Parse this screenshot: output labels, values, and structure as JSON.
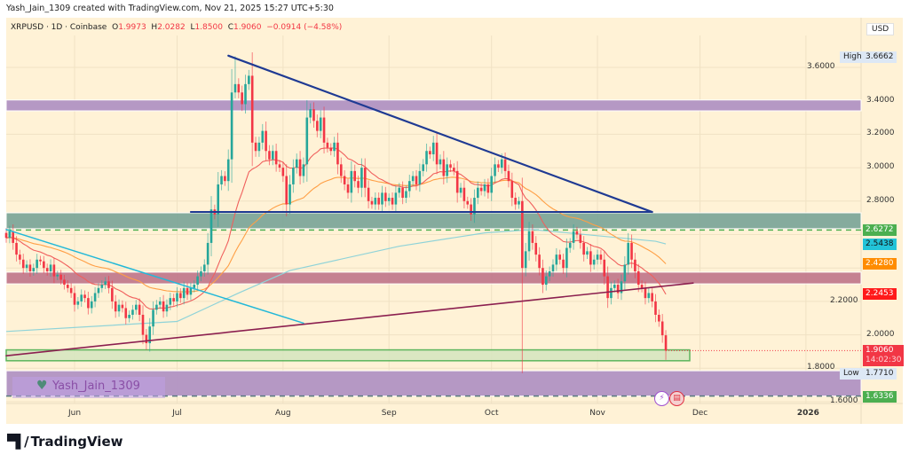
{
  "header": {
    "attribution": "Yash_Jain_1309 created with TradingView.com, Nov 21, 2025 15:27 UTC+5:30"
  },
  "legend": {
    "symbol": "XRPUSD · 1D · Coinbase",
    "o_label": "O",
    "o": "1.9973",
    "h_label": "H",
    "h": "2.0282",
    "l_label": "L",
    "l": "1.8500",
    "c_label": "C",
    "c": "1.9060",
    "change": "−0.0914 (−4.58%)"
  },
  "currency": "USD",
  "watermark": "Yash_Jain_1309",
  "brand": "TradingView",
  "colors": {
    "background": "#fff2d6",
    "up": "#26a69a",
    "down": "#f23645",
    "ema_fast": "#f0605d",
    "ema_slow": "#ff9f45",
    "ma_long": "#8fd3d8",
    "trendline": "#1f3a93",
    "cyan_line": "#22b8d8",
    "maroon_line": "#8b1f4f"
  },
  "chart_data": {
    "type": "candlestick",
    "start_date": "2025-05-12",
    "interval": "1D",
    "ylim": [
      1.56,
      3.78
    ],
    "y_ticks": [
      "3.6000",
      "3.4000",
      "3.2000",
      "3.0000",
      "2.8000",
      "2.2000",
      "2.0000",
      "1.8000",
      "1.6000"
    ],
    "x_ticks": [
      {
        "label": "Jun",
        "date": "2025-06-01"
      },
      {
        "label": "Jul",
        "date": "2025-07-01"
      },
      {
        "label": "Aug",
        "date": "2025-08-01"
      },
      {
        "label": "Sep",
        "date": "2025-09-01"
      },
      {
        "label": "Oct",
        "date": "2025-10-01"
      },
      {
        "label": "Nov",
        "date": "2025-11-01"
      },
      {
        "label": "Dec",
        "date": "2025-12-01"
      },
      {
        "label": "2026",
        "date": "2026-01-01"
      }
    ],
    "closes": [
      2.58,
      2.62,
      2.55,
      2.48,
      2.45,
      2.4,
      2.42,
      2.38,
      2.4,
      2.45,
      2.44,
      2.4,
      2.38,
      2.42,
      2.35,
      2.36,
      2.33,
      2.3,
      2.28,
      2.25,
      2.18,
      2.2,
      2.24,
      2.22,
      2.16,
      2.2,
      2.25,
      2.28,
      2.3,
      2.32,
      2.28,
      2.2,
      2.14,
      2.18,
      2.16,
      2.1,
      2.12,
      2.15,
      2.18,
      2.12,
      2.0,
      1.95,
      2.05,
      2.15,
      2.18,
      2.2,
      2.14,
      2.18,
      2.22,
      2.2,
      2.25,
      2.22,
      2.28,
      2.24,
      2.28,
      2.3,
      2.35,
      2.38,
      2.42,
      2.55,
      2.75,
      2.72,
      2.9,
      2.95,
      2.92,
      3.05,
      3.45,
      3.5,
      3.45,
      3.38,
      3.5,
      3.55,
      3.15,
      3.1,
      3.15,
      3.22,
      3.1,
      3.05,
      3.1,
      3.02,
      3.0,
      2.95,
      2.78,
      2.9,
      3.0,
      3.05,
      2.95,
      3.02,
      3.3,
      3.35,
      3.28,
      3.22,
      3.3,
      3.15,
      3.12,
      3.1,
      3.15,
      3.02,
      2.95,
      2.9,
      2.85,
      2.98,
      2.92,
      2.88,
      3.0,
      2.88,
      2.8,
      2.78,
      2.82,
      2.78,
      2.85,
      2.8,
      2.82,
      2.78,
      2.85,
      2.88,
      2.82,
      2.86,
      2.92,
      2.95,
      2.9,
      2.98,
      3.02,
      3.1,
      3.08,
      3.15,
      3.02,
      3.05,
      2.95,
      3.02,
      3.0,
      2.98,
      2.85,
      2.88,
      2.8,
      2.78,
      2.72,
      2.82,
      2.88,
      2.86,
      2.9,
      2.85,
      2.95,
      3.02,
      3.0,
      3.05,
      2.98,
      2.92,
      2.82,
      2.78,
      2.8,
      2.4,
      2.5,
      2.62,
      2.55,
      2.48,
      2.4,
      2.3,
      2.35,
      2.38,
      2.42,
      2.48,
      2.45,
      2.4,
      2.52,
      2.55,
      2.62,
      2.6,
      2.55,
      2.48,
      2.5,
      2.42,
      2.45,
      2.48,
      2.45,
      2.35,
      2.22,
      2.28,
      2.3,
      2.25,
      2.32,
      2.42,
      2.55,
      2.45,
      2.38,
      2.3,
      2.28,
      2.22,
      2.25,
      2.2,
      2.12,
      2.08,
      1.9973,
      1.906
    ],
    "overrides": [
      {
        "date": "2025-07-18",
        "high": 3.6662
      },
      {
        "date": "2025-10-10",
        "open": 2.8,
        "low": 1.771
      },
      {
        "date": "2025-06-22",
        "low": 1.91
      },
      {
        "date": "2025-11-21",
        "open": 1.9973,
        "high": 2.0282,
        "low": 1.85,
        "close": 1.906
      }
    ],
    "ma_long": [
      [
        "2025-05-12",
        2.02
      ],
      [
        "2025-07-01",
        2.08
      ],
      [
        "2025-07-19",
        2.25
      ],
      [
        "2025-08-03",
        2.385
      ],
      [
        "2025-09-04",
        2.53
      ],
      [
        "2025-09-29",
        2.61
      ],
      [
        "2025-10-13",
        2.63
      ],
      [
        "2025-11-18",
        2.56
      ],
      [
        "2025-11-21",
        2.5438
      ]
    ],
    "zones": [
      {
        "from": 3.405,
        "to": 3.34,
        "color": "#b294c4",
        "end": "edge"
      },
      {
        "from": 2.73,
        "to": 2.635,
        "color": "#7fa89a",
        "end": "edge"
      },
      {
        "from": 2.375,
        "to": 2.305,
        "color": "#c27b8e",
        "end": "edge"
      },
      {
        "from": 1.91,
        "to": 1.845,
        "color": "#d8e6c0",
        "stroke": "#4caf50",
        "end": "2025-11-28"
      },
      {
        "from": 1.785,
        "to": 1.6336,
        "color": "#b294c4",
        "end": "edge"
      }
    ],
    "lines": [
      {
        "name": "descending-trendline",
        "p1": [
          "2025-07-16",
          3.67
        ],
        "p2": [
          "2025-11-17",
          2.735
        ],
        "color": "#1f3a93",
        "width": 2.2
      },
      {
        "name": "horizontal-support-line",
        "p1": [
          "2025-07-05",
          2.735
        ],
        "p2": [
          "2025-11-17",
          2.735
        ],
        "color": "#1f3a93",
        "width": 2
      },
      {
        "name": "cyan-trendline",
        "p1": [
          "2025-05-12",
          2.63
        ],
        "p2": [
          "2025-08-07",
          2.07
        ],
        "color": "#22b8d8",
        "width": 1.5
      },
      {
        "name": "maroon-trendline",
        "p1": [
          "2025-05-12",
          1.875
        ],
        "p2": [
          "2025-11-29",
          2.31
        ],
        "color": "#8b1f4f",
        "width": 1.6
      }
    ],
    "dashed_levels": [
      {
        "value": 2.6272,
        "color": "#4caf50"
      },
      {
        "value": 1.6336,
        "color": "#5a7a80"
      }
    ],
    "price_labels": [
      {
        "value": "2.6272",
        "color": "#4caf50",
        "text": "#fff"
      },
      {
        "value": "2.5438",
        "color": "#22c3d8",
        "text": "#111"
      },
      {
        "value": "2.4280",
        "color": "#ff8c00",
        "text": "#fff"
      },
      {
        "value": "2.2453",
        "color": "#ff1a1a",
        "text": "#fff"
      },
      {
        "value": "1.9060",
        "color": "#f23645",
        "text": "#fff",
        "sub": "14:02:30"
      },
      {
        "value": "1.6336",
        "color": "#4caf50",
        "text": "#fff"
      }
    ],
    "high": {
      "label": "High",
      "value": "3.6662"
    },
    "low": {
      "label": "Low",
      "value": "1.7710"
    }
  }
}
